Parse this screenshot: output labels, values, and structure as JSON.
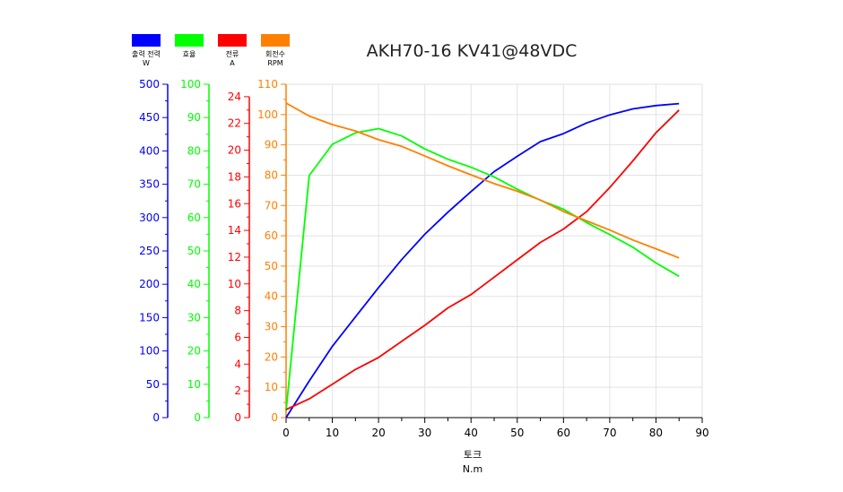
{
  "chart_data": {
    "type": "line",
    "title": "AKH70-16 KV41@48VDC",
    "xlabel": "토크",
    "xunit": "N.m",
    "xlim": [
      0,
      90
    ],
    "xticks": [
      0,
      10,
      20,
      30,
      40,
      50,
      60,
      70,
      80,
      90
    ],
    "x": [
      0,
      5,
      10,
      15,
      20,
      25,
      30,
      35,
      40,
      45,
      50,
      55,
      60,
      65,
      70,
      75,
      80,
      85
    ],
    "grid": true,
    "legend_position": "top-left",
    "series": [
      {
        "name": "출력 전력",
        "unit": "W",
        "color": "#0000ff",
        "axis": "w",
        "ylim": [
          0,
          500
        ],
        "step": 50,
        "values": [
          0,
          55,
          107,
          151,
          195,
          237,
          275,
          308,
          339,
          369,
          392,
          414,
          426,
          442,
          454,
          463,
          468,
          471
        ]
      },
      {
        "name": "효율",
        "unit": "",
        "color": "#00ff00",
        "axis": "eff",
        "ylim": [
          0,
          100
        ],
        "step": 10,
        "values": [
          2,
          72.6,
          82,
          85.4,
          86.7,
          84.5,
          80.6,
          77.5,
          75.1,
          72.2,
          68.5,
          65.2,
          62.5,
          58.5,
          54.9,
          51.1,
          46.4,
          42.4
        ]
      },
      {
        "name": "전류",
        "unit": "A",
        "color": "#ff0000",
        "axis": "a",
        "ylim": [
          0,
          24.93
        ],
        "step": 2,
        "max_label": 24,
        "values": [
          0.6,
          1.4,
          2.5,
          3.6,
          4.5,
          5.7,
          6.9,
          8.2,
          9.2,
          10.5,
          11.8,
          13.1,
          14.1,
          15.4,
          17.2,
          19.2,
          21.3,
          23.0
        ]
      },
      {
        "name": "회전수",
        "unit": "RPM",
        "color": "#ff8000",
        "axis": "rpm",
        "ylim": [
          0,
          110
        ],
        "step": 10,
        "values": [
          103.8,
          99.5,
          96.7,
          94.6,
          91.7,
          89.5,
          86.3,
          83.1,
          80.1,
          77.2,
          74.7,
          71.8,
          68,
          64.9,
          61.9,
          58.6,
          55.7,
          52.7
        ]
      }
    ]
  }
}
